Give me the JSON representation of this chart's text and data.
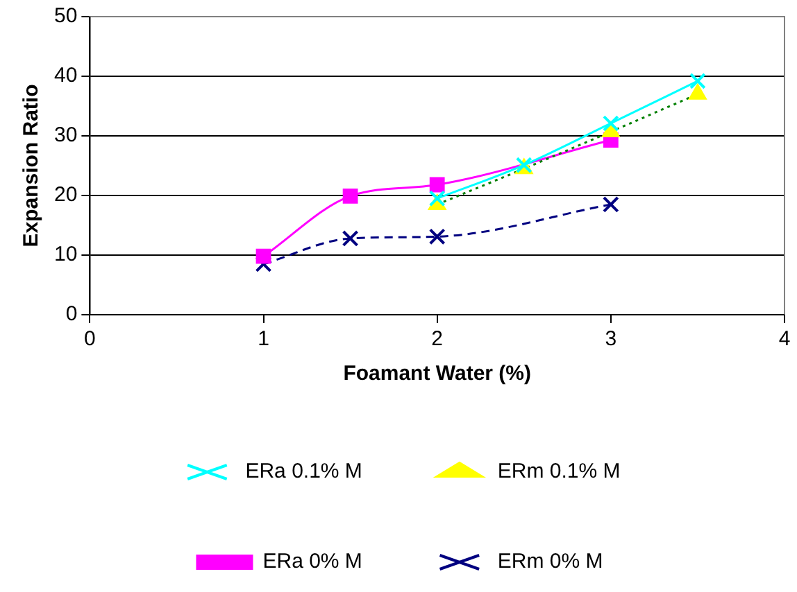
{
  "chart_data": {
    "type": "line",
    "xlabel": "Foamant Water (%)",
    "ylabel": "Expansion Ratio",
    "xlim": [
      0,
      4
    ],
    "xticks": [
      0,
      1,
      2,
      3,
      4
    ],
    "ylim": [
      0,
      50
    ],
    "yticks": [
      0,
      10,
      20,
      30,
      40,
      50
    ],
    "grid": "y",
    "legend": "bottom",
    "series": [
      {
        "name": "ERm 0% M",
        "color": "#000080",
        "x": [
          1,
          1.5,
          2,
          3
        ],
        "values": [
          8.5,
          12.8,
          13.1,
          18.5
        ],
        "marker": "cross",
        "line_style": "dashed"
      },
      {
        "name": "ERa 0% M",
        "color": "#ff00ff",
        "x": [
          1,
          1.5,
          2,
          3
        ],
        "values": [
          9.8,
          19.9,
          21.8,
          29.3
        ],
        "marker": "square",
        "line_style": "solid"
      },
      {
        "name": "ERm 0.1% M",
        "color": "#008000",
        "colors": [
          "#ffff00",
          "#ffff00",
          "#ffff00",
          "#ffff00"
        ],
        "x": [
          2,
          2.5,
          3,
          3.5
        ],
        "values": [
          18.5,
          24.5,
          30.7,
          37
        ],
        "marker": "triangle",
        "line_style": "dotted"
      },
      {
        "name": "ERa 0.1% M",
        "color": "#00ffff",
        "x": [
          2,
          2.5,
          3,
          3.5
        ],
        "values": [
          19.5,
          25.1,
          32.1,
          39.2
        ],
        "marker": "cross",
        "line_style": "solid"
      }
    ]
  }
}
